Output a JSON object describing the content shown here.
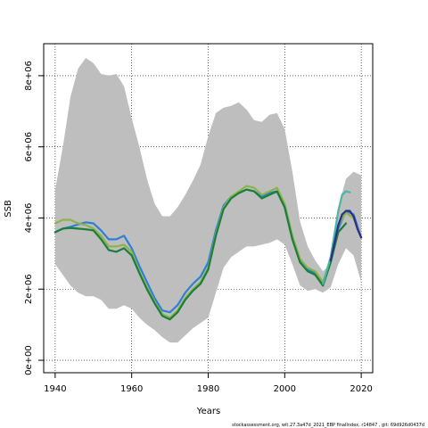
{
  "chart_data": {
    "type": "line",
    "xlabel": "Years",
    "ylabel": "SSB",
    "xlim": [
      1937,
      2023
    ],
    "ylim": [
      -350000,
      8900000
    ],
    "x_ticks": [
      1940,
      1960,
      1980,
      2000,
      2020
    ],
    "x_tick_labels": [
      "1940",
      "1960",
      "1980",
      "2000",
      "2020"
    ],
    "y_ticks": [
      0,
      2000000,
      4000000,
      6000000,
      8000000
    ],
    "y_tick_labels": [
      "0e+00",
      "2e+06",
      "4e+06",
      "6e+06",
      "8e+06"
    ],
    "grid": true,
    "footer": "stockassessment.org, wit.27.3a47d_2021_EBP finalIndex, r14847 , git: 69d926d0437d",
    "band": {
      "color": "#bebebe",
      "x": [
        1940,
        1942,
        1944,
        1946,
        1948,
        1950,
        1952,
        1954,
        1956,
        1958,
        1960,
        1962,
        1964,
        1966,
        1968,
        1970,
        1972,
        1974,
        1976,
        1978,
        1980,
        1982,
        1984,
        1986,
        1988,
        1990,
        1992,
        1994,
        1996,
        1998,
        2000,
        2002,
        2004,
        2006,
        2008,
        2010,
        2012,
        2014,
        2016,
        2018,
        2020
      ],
      "upper": [
        4800000,
        6000000,
        7400000,
        8200000,
        8500000,
        8350000,
        8050000,
        8000000,
        8050000,
        7700000,
        6800000,
        6000000,
        5100000,
        4400000,
        4050000,
        4050000,
        4300000,
        4650000,
        5050000,
        5500000,
        6300000,
        6950000,
        7100000,
        7150000,
        7250000,
        7050000,
        6750000,
        6700000,
        6900000,
        6950000,
        6500000,
        5300000,
        3900000,
        3200000,
        2800000,
        2500000,
        2700000,
        4300000,
        5100000,
        5300000,
        5200000
      ],
      "lower": [
        2700000,
        2400000,
        2100000,
        1900000,
        1800000,
        1800000,
        1700000,
        1450000,
        1450000,
        1550000,
        1450000,
        1200000,
        1000000,
        850000,
        650000,
        500000,
        500000,
        700000,
        900000,
        1050000,
        1200000,
        1900000,
        2600000,
        2900000,
        3050000,
        3200000,
        3200000,
        3250000,
        3300000,
        3400000,
        3250000,
        2700000,
        2100000,
        1950000,
        2000000,
        1900000,
        2050000,
        2700000,
        3150000,
        2950000,
        2200000
      ]
    },
    "series": [
      {
        "color": "#2f7fd8",
        "x": [
          1940,
          1942,
          1944,
          1946,
          1948,
          1950,
          1952,
          1954,
          1956,
          1958,
          1960,
          1962,
          1964,
          1966,
          1968,
          1970,
          1972,
          1974,
          1976,
          1978,
          1980,
          1982,
          1984,
          1986,
          1988,
          1990,
          1992,
          1994,
          1996,
          1998,
          2000,
          2002,
          2004,
          2006,
          2008,
          2010,
          2012,
          2014,
          2016,
          2018,
          2020
        ],
        "values": [
          3600000,
          3700000,
          3750000,
          3820000,
          3880000,
          3850000,
          3650000,
          3400000,
          3400000,
          3500000,
          3150000,
          2650000,
          2200000,
          1750000,
          1400000,
          1350000,
          1550000,
          1900000,
          2150000,
          2350000,
          2750000,
          3650000,
          4350000,
          4600000,
          4700000,
          4800000,
          4750000,
          4600000,
          4700000,
          4750000,
          4300000,
          3400000,
          2800000,
          2550000,
          2450000,
          2150000,
          2750000,
          3700000,
          4200000,
          4100000,
          3450000
        ]
      },
      {
        "color": "#8db34a",
        "x": [
          1940,
          1942,
          1944,
          1946,
          1948,
          1950,
          1952,
          1954,
          1956,
          1958,
          1960,
          1962,
          1964,
          1966,
          1968,
          1970,
          1972,
          1974,
          1976,
          1978,
          1980,
          1982,
          1984,
          1986,
          1988,
          1990,
          1992,
          1994,
          1996,
          1998,
          2000,
          2002,
          2004,
          2006,
          2008,
          2010,
          2012,
          2014,
          2016,
          2018,
          2020
        ],
        "values": [
          3850000,
          3950000,
          3950000,
          3850000,
          3800000,
          3700000,
          3500000,
          3200000,
          3200000,
          3250000,
          3050000,
          2500000,
          2050000,
          1650000,
          1300000,
          1200000,
          1400000,
          1750000,
          2000000,
          2200000,
          2600000,
          3550000,
          4300000,
          4600000,
          4750000,
          4900000,
          4850000,
          4650000,
          4750000,
          4850000,
          4400000,
          3500000,
          2850000,
          2600000,
          2500000,
          2200000,
          2800000,
          3800000,
          4150000,
          4000000,
          3450000
        ]
      },
      {
        "color": "#1b7f3a",
        "x": [
          1940,
          1942,
          1944,
          1946,
          1948,
          1950,
          1952,
          1954,
          1956,
          1958,
          1960,
          1962,
          1964,
          1966,
          1968,
          1970,
          1972,
          1974,
          1976,
          1978,
          1980,
          1982,
          1984,
          1986,
          1988,
          1990,
          1992,
          1994,
          1996,
          1998,
          2000,
          2002,
          2004,
          2006,
          2008,
          2010,
          2012,
          2014,
          2016
        ],
        "values": [
          3600000,
          3700000,
          3720000,
          3700000,
          3680000,
          3650000,
          3400000,
          3100000,
          3050000,
          3150000,
          2950000,
          2450000,
          2000000,
          1600000,
          1250000,
          1150000,
          1350000,
          1700000,
          1950000,
          2150000,
          2550000,
          3500000,
          4250000,
          4550000,
          4700000,
          4800000,
          4750000,
          4550000,
          4650000,
          4750000,
          4300000,
          3400000,
          2750000,
          2500000,
          2400000,
          2100000,
          2750000,
          3600000,
          3850000
        ]
      },
      {
        "color": "#4bb5a3",
        "x": [
          2010,
          2012,
          2014,
          2015,
          2016,
          2017
        ],
        "values": [
          2150000,
          2900000,
          4200000,
          4650000,
          4750000,
          4720000
        ]
      },
      {
        "color": "#2b2e8c",
        "x": [
          2012,
          2014,
          2015,
          2016,
          2017,
          2018,
          2019,
          2020
        ],
        "values": [
          2800000,
          3800000,
          4100000,
          4200000,
          4200000,
          4050000,
          3700000,
          3450000
        ]
      }
    ]
  }
}
